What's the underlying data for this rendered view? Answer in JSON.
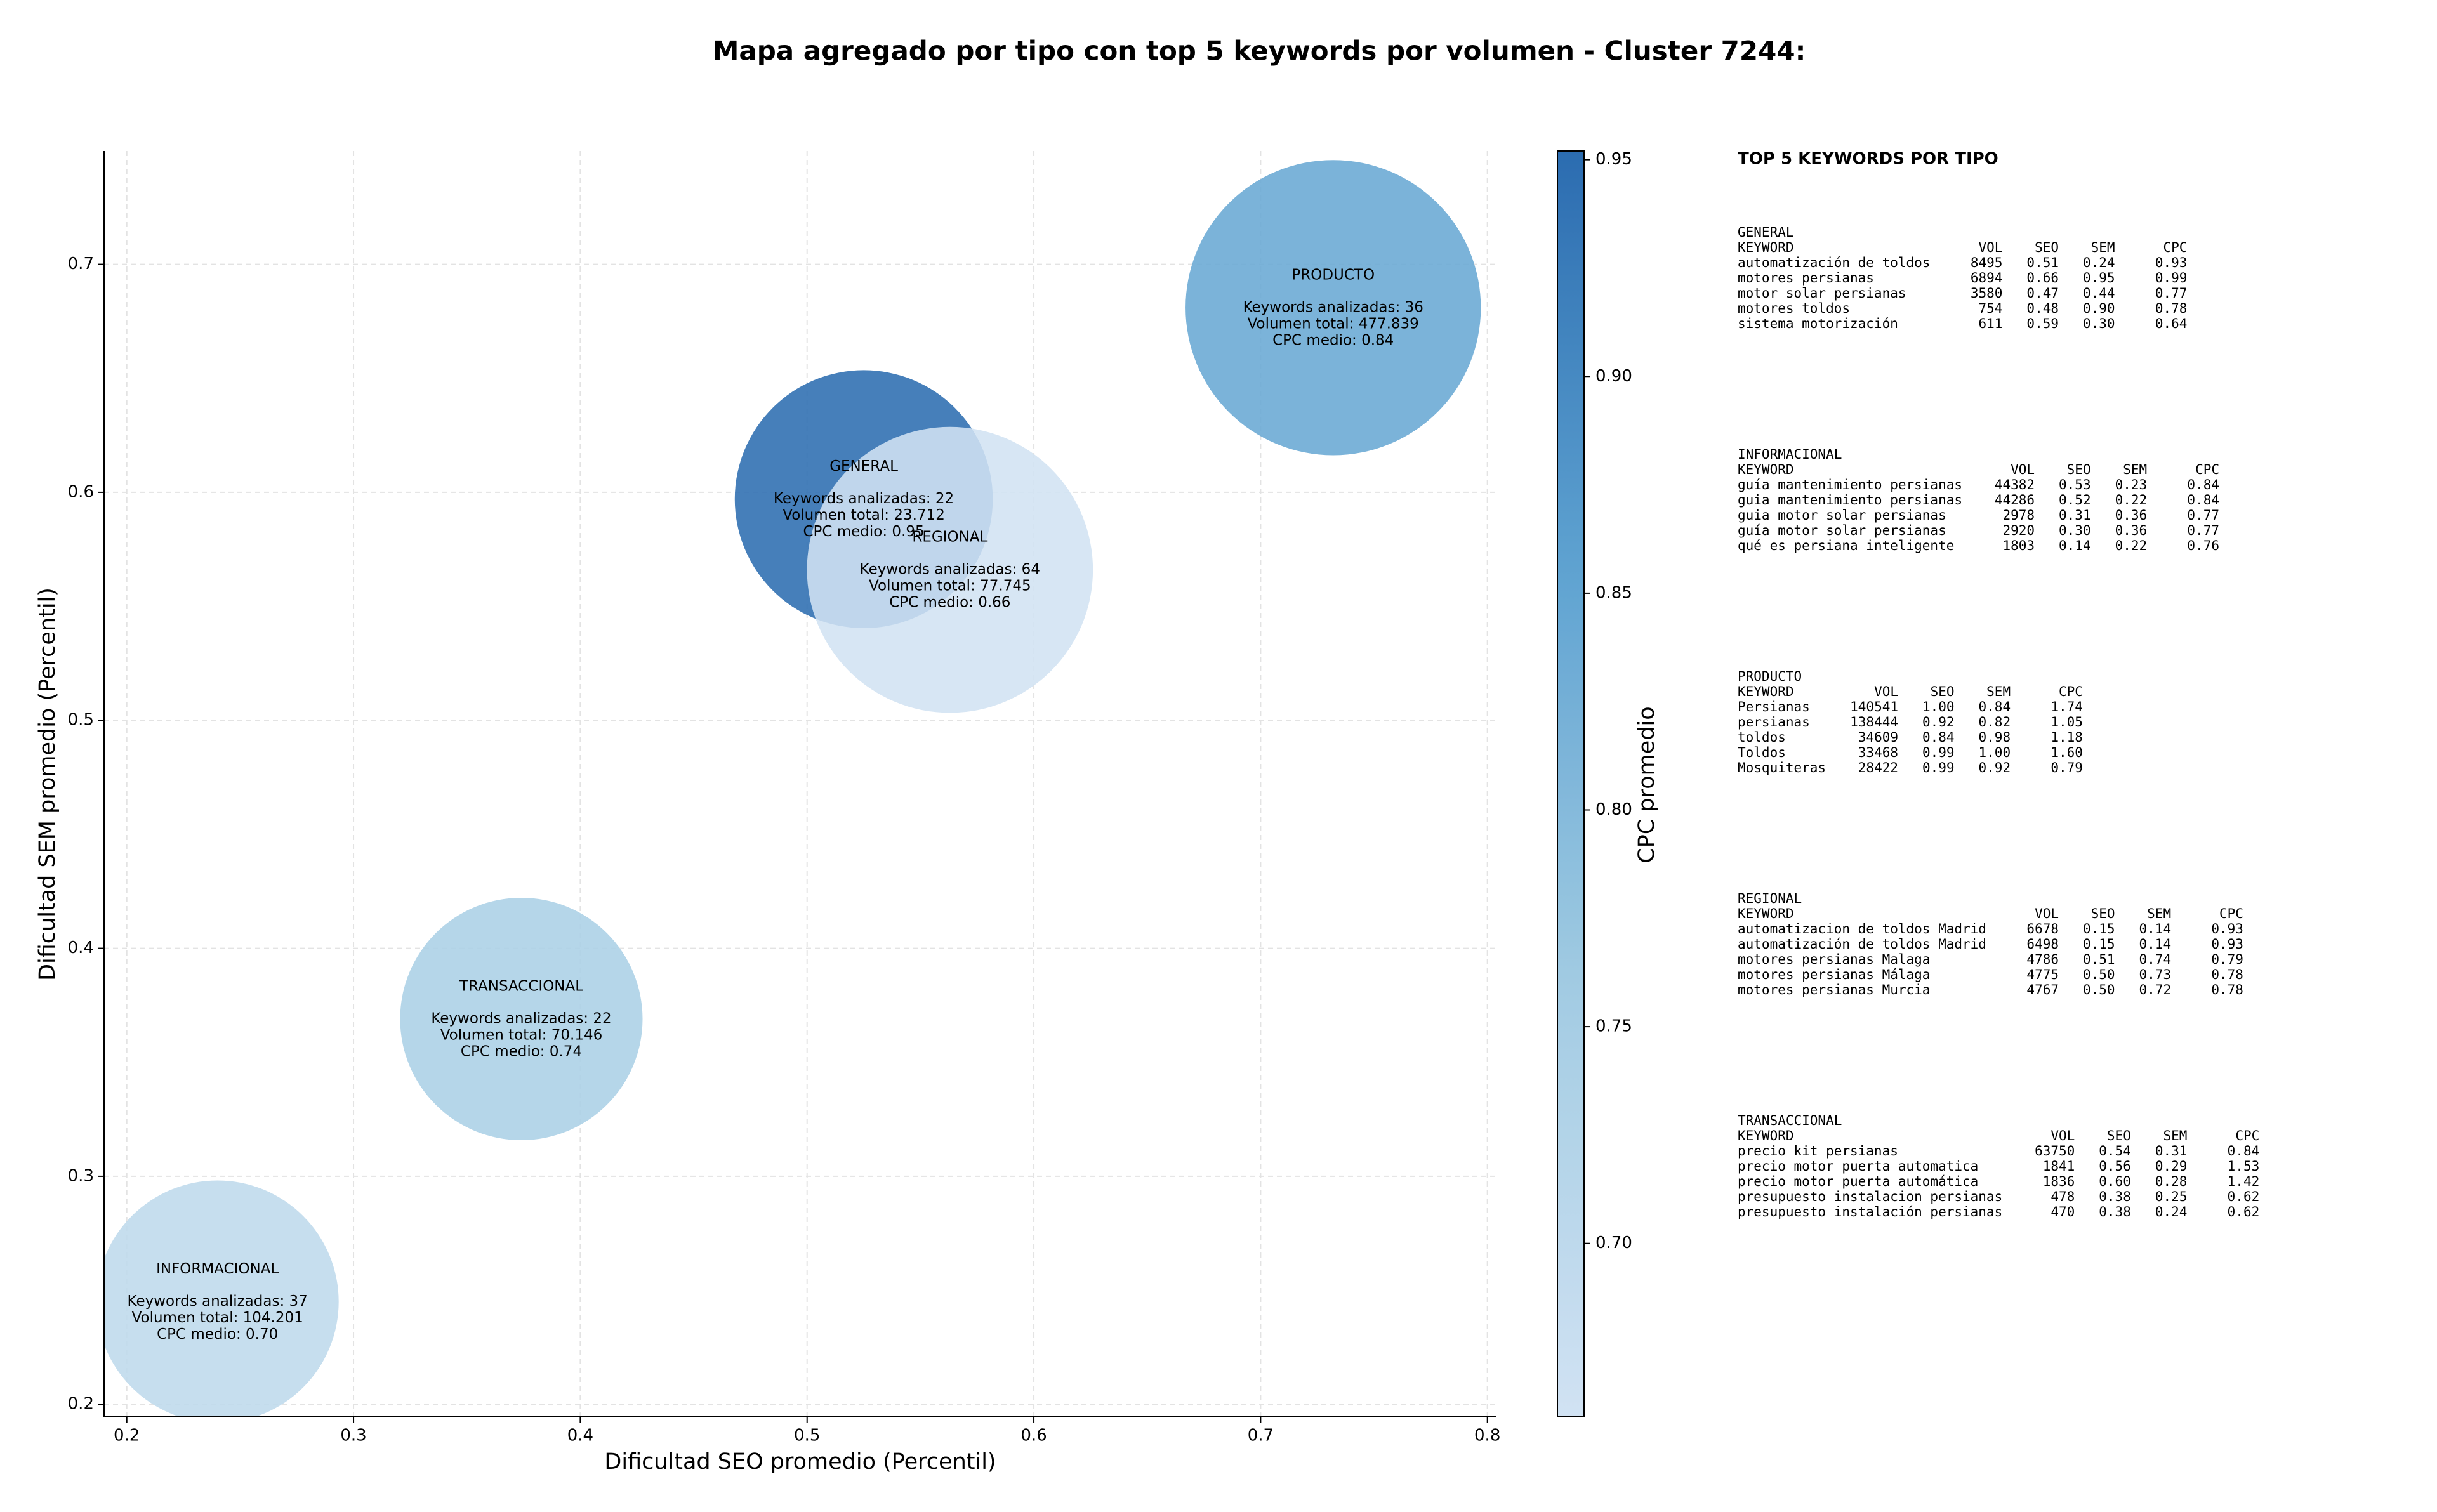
{
  "chart_data": {
    "type": "scatter",
    "title": "Mapa agregado por tipo con top 5 keywords por volumen - Cluster 7244:",
    "xlabel": "Dificultad SEO promedio (Percentil)",
    "ylabel": "Dificultad SEM promedio (Percentil)",
    "xlim": [
      0.19,
      0.804
    ],
    "ylim": [
      0.1945,
      0.7497
    ],
    "xticks": [
      0.2,
      0.3,
      0.4,
      0.5,
      0.6,
      0.7,
      0.8
    ],
    "yticks": [
      0.2,
      0.3,
      0.4,
      0.5,
      0.6,
      0.7
    ],
    "grid": true,
    "names": [
      "GENERAL",
      "INFORMACIONAL",
      "PRODUCTO",
      "REGIONAL",
      "TRANSACCIONAL"
    ],
    "x": [
      0.525,
      0.24,
      0.732,
      0.563,
      0.374
    ],
    "y": [
      0.597,
      0.245,
      0.681,
      0.566,
      0.369
    ],
    "sizes": [
      6889,
      6084,
      9025,
      8464,
      6084
    ],
    "color_values": [
      0.95,
      0.7,
      0.84,
      0.66,
      0.74
    ],
    "details": [
      [
        "Keywords analizadas: 22",
        "Volumen total: 23.712",
        "CPC medio: 0.95"
      ],
      [
        "Keywords analizadas: 37",
        "Volumen total: 104.201",
        "CPC medio: 0.70"
      ],
      [
        "Keywords analizadas: 36",
        "Volumen total: 477.839",
        "CPC medio: 0.84"
      ],
      [
        "Keywords analizadas: 64",
        "Volumen total: 77.745",
        "CPC medio: 0.66"
      ],
      [
        "Keywords analizadas: 22",
        "Volumen total: 70.146",
        "CPC medio: 0.74"
      ]
    ],
    "colormap": [
      "#d1e2f3",
      "#a3cce3",
      "#5fa3d1",
      "#2b6cb0"
    ],
    "colorbar_label": "CPC promedio",
    "clim": [
      0.66,
      0.952
    ],
    "cticks": [
      {
        "value": 0.7,
        "label": "0.70"
      },
      {
        "value": 0.75,
        "label": "0.75"
      },
      {
        "value": 0.8,
        "label": "0.80"
      },
      {
        "value": 0.85,
        "label": "0.85"
      },
      {
        "value": 0.9,
        "label": "0.90"
      },
      {
        "value": 0.95,
        "label": "0.95"
      }
    ],
    "panel": {
      "title": "TOP 5 KEYWORDS POR TIPO",
      "columns": [
        "KEYWORD",
        "VOL",
        "SEO",
        "SEM",
        "CPC"
      ],
      "sections": [
        {
          "name": "GENERAL",
          "rows": [
            [
              "automatización de toldos",
              "8495",
              "0.51",
              "0.24",
              "0.93"
            ],
            [
              "motores persianas",
              "6894",
              "0.66",
              "0.95",
              "0.99"
            ],
            [
              "motor solar persianas",
              "3580",
              "0.47",
              "0.44",
              "0.77"
            ],
            [
              "motores toldos",
              "754",
              "0.48",
              "0.90",
              "0.78"
            ],
            [
              "sistema motorización",
              "611",
              "0.59",
              "0.30",
              "0.64"
            ]
          ]
        },
        {
          "name": "INFORMACIONAL",
          "rows": [
            [
              "guía mantenimiento persianas",
              "44382",
              "0.53",
              "0.23",
              "0.84"
            ],
            [
              "guia mantenimiento persianas",
              "44286",
              "0.52",
              "0.22",
              "0.84"
            ],
            [
              "guia motor solar persianas",
              "2978",
              "0.31",
              "0.36",
              "0.77"
            ],
            [
              "guía motor solar persianas",
              "2920",
              "0.30",
              "0.36",
              "0.77"
            ],
            [
              "qué es persiana inteligente",
              "1803",
              "0.14",
              "0.22",
              "0.76"
            ]
          ]
        },
        {
          "name": "PRODUCTO",
          "rows": [
            [
              "Persianas",
              "140541",
              "1.00",
              "0.84",
              "1.74"
            ],
            [
              "persianas",
              "138444",
              "0.92",
              "0.82",
              "1.05"
            ],
            [
              "toldos",
              "34609",
              "0.84",
              "0.98",
              "1.18"
            ],
            [
              "Toldos",
              "33468",
              "0.99",
              "1.00",
              "1.60"
            ],
            [
              "Mosquiteras",
              "28422",
              "0.99",
              "0.92",
              "0.79"
            ]
          ]
        },
        {
          "name": "REGIONAL",
          "rows": [
            [
              "automatizacion de toldos Madrid",
              "6678",
              "0.15",
              "0.14",
              "0.93"
            ],
            [
              "automatización de toldos Madrid",
              "6498",
              "0.15",
              "0.14",
              "0.93"
            ],
            [
              "motores persianas Malaga",
              "4786",
              "0.51",
              "0.74",
              "0.79"
            ],
            [
              "motores persianas Málaga",
              "4775",
              "0.50",
              "0.73",
              "0.78"
            ],
            [
              "motores persianas Murcia",
              "4767",
              "0.50",
              "0.72",
              "0.78"
            ]
          ]
        },
        {
          "name": "TRANSACCIONAL",
          "rows": [
            [
              "precio kit persianas",
              "63750",
              "0.54",
              "0.31",
              "0.84"
            ],
            [
              "precio motor puerta automatica",
              "1841",
              "0.56",
              "0.29",
              "1.53"
            ],
            [
              "precio motor puerta automática",
              "1836",
              "0.60",
              "0.28",
              "1.42"
            ],
            [
              "presupuesto instalacion persianas",
              "478",
              "0.38",
              "0.25",
              "0.62"
            ],
            [
              "presupuesto instalación persianas",
              "470",
              "0.38",
              "0.24",
              "0.62"
            ]
          ]
        }
      ]
    }
  }
}
